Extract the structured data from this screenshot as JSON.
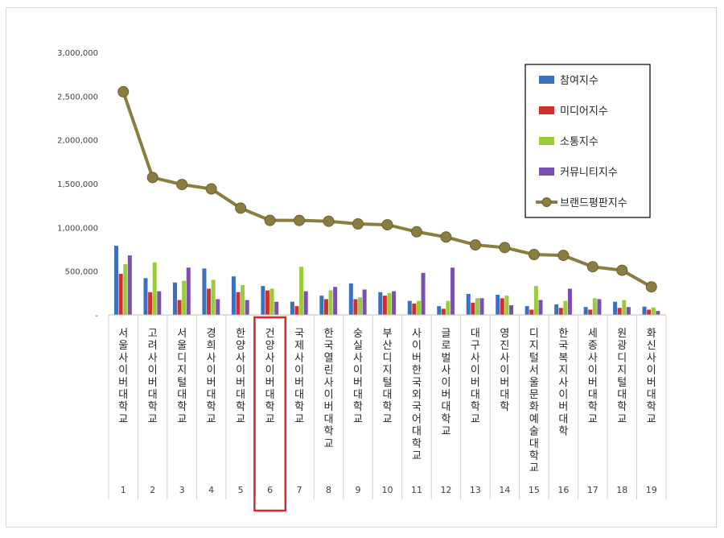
{
  "chart_data": {
    "type": "bar",
    "title": "",
    "xlabel": "",
    "ylabel": "",
    "ylim": [
      0,
      3000000
    ],
    "yticks": [
      {
        "value": 0,
        "label": "-"
      },
      {
        "value": 500000,
        "label": "500,000"
      },
      {
        "value": 1000000,
        "label": "1,000,000"
      },
      {
        "value": 1500000,
        "label": "1,500,000"
      },
      {
        "value": 2000000,
        "label": "2,000,000"
      },
      {
        "value": 2500000,
        "label": "2,500,000"
      },
      {
        "value": 3000000,
        "label": "3,000,000"
      }
    ],
    "grid": false,
    "legend_position": "top-right",
    "categories": [
      "서울사이버대학교",
      "고려사이버대학교",
      "서울디지털대학교",
      "경희사이버대학교",
      "한양사이버대학교",
      "건양사이버대학교",
      "국제사이버대학교",
      "한국열린사이버대학교",
      "숭실사이버대학교",
      "부산디지털대학교",
      "사이버한국외국어대학교",
      "글로벌사이버대학교",
      "대구사이버대학교",
      "영진사이버대학",
      "디지털서울문화예술대학교",
      "한국복지사이버대학",
      "세종사이버대학교",
      "원광디지털대학교",
      "화신사이버대학교"
    ],
    "ranks": [
      "1",
      "2",
      "3",
      "4",
      "5",
      "6",
      "7",
      "8",
      "9",
      "10",
      "11",
      "12",
      "13",
      "14",
      "15",
      "16",
      "17",
      "18",
      "19"
    ],
    "highlight_index": 5,
    "highlight_color": "#e0262b",
    "series": [
      {
        "name": "참여지수",
        "kind": "bar",
        "color": "#3b6fc0",
        "values": [
          790000,
          420000,
          370000,
          530000,
          440000,
          330000,
          150000,
          220000,
          360000,
          260000,
          160000,
          100000,
          240000,
          230000,
          100000,
          120000,
          90000,
          150000,
          95000
        ]
      },
      {
        "name": "미디어지수",
        "kind": "bar",
        "color": "#d0302c",
        "values": [
          470000,
          260000,
          170000,
          300000,
          260000,
          280000,
          100000,
          180000,
          180000,
          220000,
          130000,
          70000,
          140000,
          190000,
          60000,
          80000,
          60000,
          80000,
          60000
        ]
      },
      {
        "name": "소통지수",
        "kind": "bar",
        "color": "#9acb3b",
        "values": [
          580000,
          600000,
          390000,
          400000,
          340000,
          300000,
          550000,
          280000,
          200000,
          250000,
          160000,
          160000,
          190000,
          220000,
          330000,
          160000,
          190000,
          170000,
          85000
        ]
      },
      {
        "name": "커뮤니티지수",
        "kind": "bar",
        "color": "#7a4fad",
        "values": [
          680000,
          270000,
          540000,
          180000,
          170000,
          150000,
          270000,
          320000,
          290000,
          270000,
          480000,
          540000,
          190000,
          110000,
          170000,
          300000,
          180000,
          90000,
          45000
        ]
      },
      {
        "name": "브랜드평판지수",
        "kind": "line",
        "color": "#8a7d3f",
        "values": [
          2550000,
          1570000,
          1490000,
          1440000,
          1220000,
          1080000,
          1080000,
          1070000,
          1040000,
          1030000,
          950000,
          890000,
          800000,
          770000,
          690000,
          680000,
          550000,
          510000,
          320000
        ]
      }
    ]
  }
}
